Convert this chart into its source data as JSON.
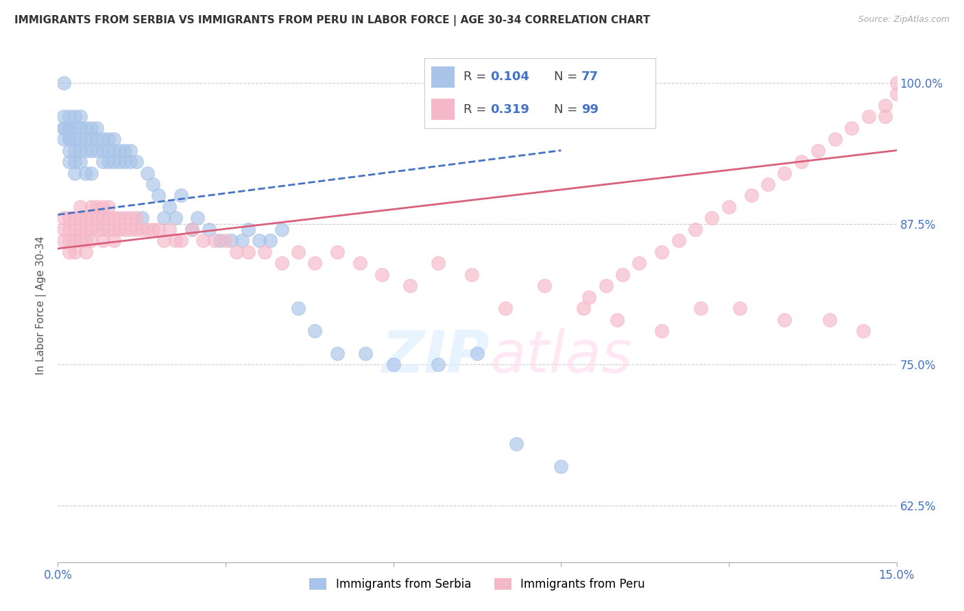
{
  "title": "IMMIGRANTS FROM SERBIA VS IMMIGRANTS FROM PERU IN LABOR FORCE | AGE 30-34 CORRELATION CHART",
  "source": "Source: ZipAtlas.com",
  "ylabel": "In Labor Force | Age 30-34",
  "xlim": [
    0.0,
    0.15
  ],
  "ylim": [
    0.575,
    1.03
  ],
  "xticks": [
    0.0,
    0.03,
    0.06,
    0.09,
    0.12,
    0.15
  ],
  "xticklabels": [
    "0.0%",
    "",
    "",
    "",
    "",
    "15.0%"
  ],
  "yticks": [
    0.625,
    0.75,
    0.875,
    1.0
  ],
  "yticklabels": [
    "62.5%",
    "75.0%",
    "87.5%",
    "100.0%"
  ],
  "serbia_color": "#a8c4e8",
  "peru_color": "#f5b8c8",
  "serbia_line_color": "#4472c4",
  "peru_line_color": "#d9607a",
  "serbia_R": 0.104,
  "serbia_N": 77,
  "peru_R": 0.319,
  "peru_N": 99,
  "serbia_x": [
    0.001,
    0.001,
    0.001,
    0.001,
    0.001,
    0.002,
    0.002,
    0.002,
    0.002,
    0.002,
    0.002,
    0.002,
    0.003,
    0.003,
    0.003,
    0.003,
    0.003,
    0.003,
    0.004,
    0.004,
    0.004,
    0.004,
    0.004,
    0.005,
    0.005,
    0.005,
    0.005,
    0.006,
    0.006,
    0.006,
    0.006,
    0.007,
    0.007,
    0.007,
    0.008,
    0.008,
    0.008,
    0.009,
    0.009,
    0.009,
    0.01,
    0.01,
    0.01,
    0.011,
    0.011,
    0.012,
    0.012,
    0.013,
    0.013,
    0.014,
    0.015,
    0.016,
    0.017,
    0.018,
    0.019,
    0.02,
    0.021,
    0.022,
    0.024,
    0.025,
    0.027,
    0.029,
    0.031,
    0.033,
    0.034,
    0.036,
    0.038,
    0.04,
    0.043,
    0.046,
    0.05,
    0.055,
    0.06,
    0.068,
    0.075,
    0.082,
    0.09
  ],
  "serbia_y": [
    0.96,
    0.96,
    0.97,
    0.95,
    1.0,
    0.97,
    0.96,
    0.95,
    0.96,
    0.95,
    0.94,
    0.93,
    0.97,
    0.96,
    0.95,
    0.94,
    0.93,
    0.92,
    0.97,
    0.96,
    0.95,
    0.94,
    0.93,
    0.96,
    0.95,
    0.94,
    0.92,
    0.96,
    0.95,
    0.94,
    0.92,
    0.96,
    0.95,
    0.94,
    0.95,
    0.94,
    0.93,
    0.95,
    0.94,
    0.93,
    0.95,
    0.94,
    0.93,
    0.94,
    0.93,
    0.94,
    0.93,
    0.94,
    0.93,
    0.93,
    0.88,
    0.92,
    0.91,
    0.9,
    0.88,
    0.89,
    0.88,
    0.9,
    0.87,
    0.88,
    0.87,
    0.86,
    0.86,
    0.86,
    0.87,
    0.86,
    0.86,
    0.87,
    0.8,
    0.78,
    0.76,
    0.76,
    0.75,
    0.75,
    0.76,
    0.68,
    0.66
  ],
  "peru_x": [
    0.001,
    0.001,
    0.001,
    0.002,
    0.002,
    0.002,
    0.002,
    0.003,
    0.003,
    0.003,
    0.003,
    0.004,
    0.004,
    0.004,
    0.004,
    0.005,
    0.005,
    0.005,
    0.005,
    0.006,
    0.006,
    0.006,
    0.006,
    0.007,
    0.007,
    0.007,
    0.008,
    0.008,
    0.008,
    0.008,
    0.009,
    0.009,
    0.009,
    0.01,
    0.01,
    0.01,
    0.011,
    0.011,
    0.012,
    0.012,
    0.013,
    0.013,
    0.014,
    0.014,
    0.015,
    0.016,
    0.017,
    0.018,
    0.019,
    0.02,
    0.021,
    0.022,
    0.024,
    0.026,
    0.028,
    0.03,
    0.032,
    0.034,
    0.037,
    0.04,
    0.043,
    0.046,
    0.05,
    0.054,
    0.058,
    0.063,
    0.068,
    0.074,
    0.08,
    0.087,
    0.094,
    0.1,
    0.108,
    0.115,
    0.122,
    0.13,
    0.138,
    0.144,
    0.148,
    0.15,
    0.15,
    0.148,
    0.145,
    0.142,
    0.139,
    0.136,
    0.133,
    0.13,
    0.127,
    0.124,
    0.12,
    0.117,
    0.114,
    0.111,
    0.108,
    0.104,
    0.101,
    0.098,
    0.095
  ],
  "peru_y": [
    0.87,
    0.88,
    0.86,
    0.88,
    0.87,
    0.86,
    0.85,
    0.88,
    0.87,
    0.86,
    0.85,
    0.89,
    0.88,
    0.87,
    0.86,
    0.88,
    0.87,
    0.86,
    0.85,
    0.89,
    0.88,
    0.87,
    0.86,
    0.89,
    0.88,
    0.87,
    0.89,
    0.88,
    0.87,
    0.86,
    0.89,
    0.88,
    0.87,
    0.88,
    0.87,
    0.86,
    0.88,
    0.87,
    0.88,
    0.87,
    0.88,
    0.87,
    0.88,
    0.87,
    0.87,
    0.87,
    0.87,
    0.87,
    0.86,
    0.87,
    0.86,
    0.86,
    0.87,
    0.86,
    0.86,
    0.86,
    0.85,
    0.85,
    0.85,
    0.84,
    0.85,
    0.84,
    0.85,
    0.84,
    0.83,
    0.82,
    0.84,
    0.83,
    0.8,
    0.82,
    0.8,
    0.79,
    0.78,
    0.8,
    0.8,
    0.79,
    0.79,
    0.78,
    0.97,
    1.0,
    0.99,
    0.98,
    0.97,
    0.96,
    0.95,
    0.94,
    0.93,
    0.92,
    0.91,
    0.9,
    0.89,
    0.88,
    0.87,
    0.86,
    0.85,
    0.84,
    0.83,
    0.82,
    0.81
  ],
  "serbia_trend_x0": 0.0,
  "serbia_trend_y0": 0.883,
  "serbia_trend_x1": 0.09,
  "serbia_trend_y1": 0.94,
  "peru_trend_x0": 0.0,
  "peru_trend_y0": 0.853,
  "peru_trend_x1": 0.15,
  "peru_trend_y1": 0.94
}
